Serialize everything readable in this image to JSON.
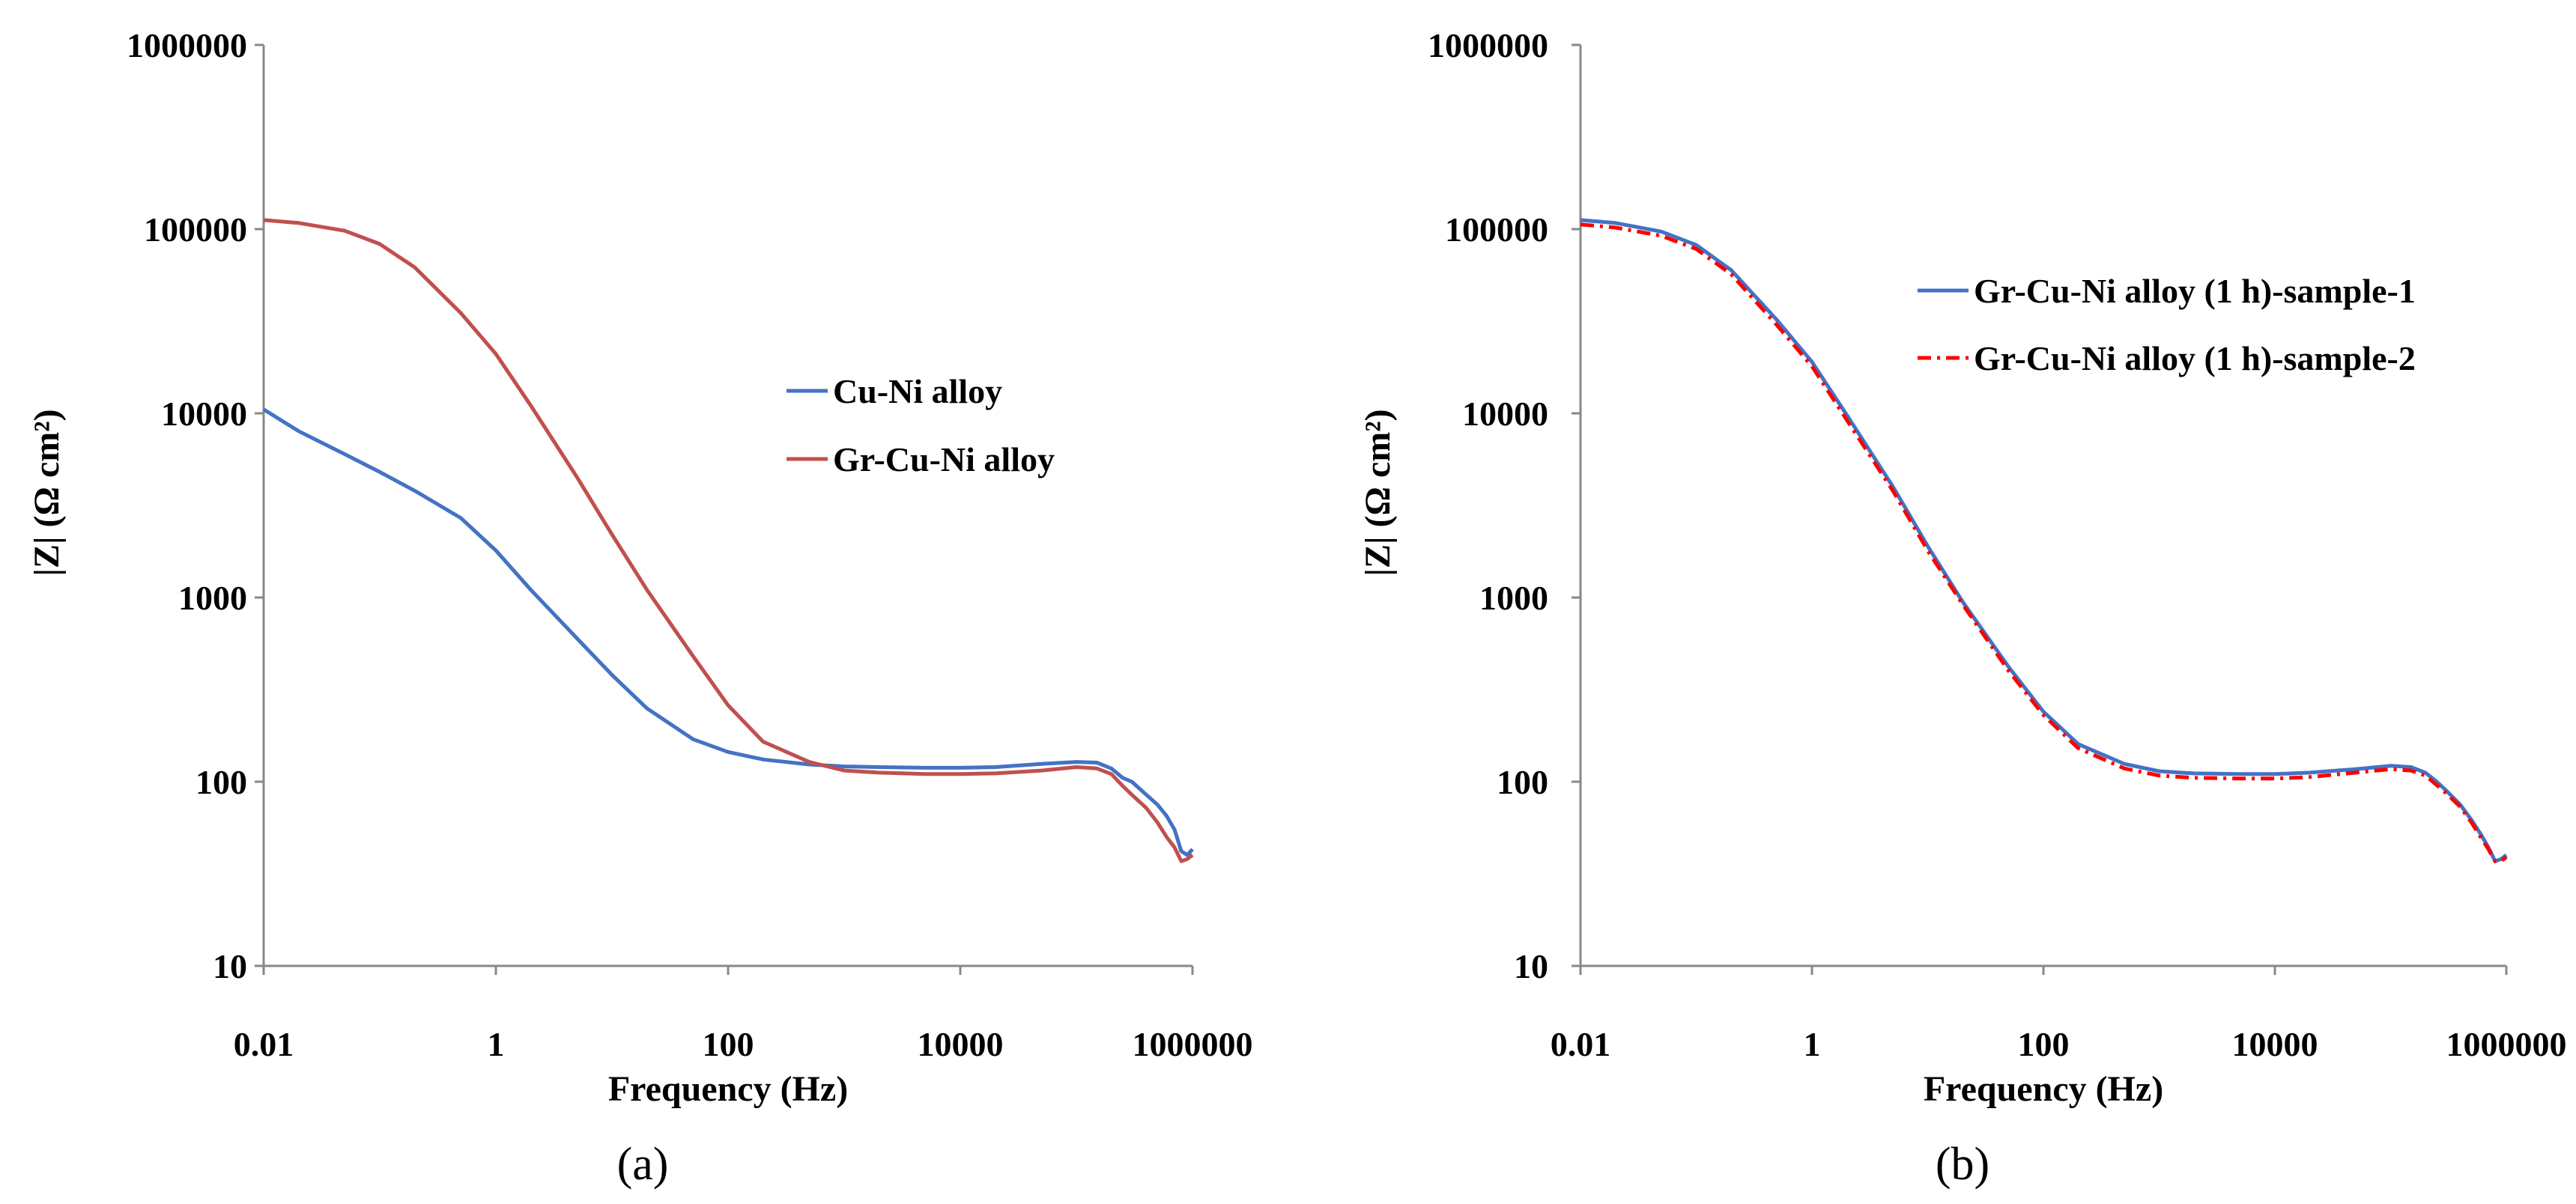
{
  "chart_data": [
    {
      "type": "line",
      "panel_label": "(a)",
      "xscale": "log",
      "yscale": "log",
      "xlim": [
        0.01,
        1000000
      ],
      "ylim": [
        10,
        1000000
      ],
      "xlabel": "Frequency (Hz)",
      "ylabel": "|Z| (Ω cm²)",
      "xticks": [
        "0.01",
        "1",
        "100",
        "10000",
        "1000000"
      ],
      "yticks": [
        "10",
        "100",
        "1000",
        "10000",
        "100000",
        "1000000"
      ],
      "grid": false,
      "legend_position": "center-right",
      "series": [
        {
          "name": "Cu-Ni alloy",
          "color": "#4472C4",
          "dash": "solid",
          "x": [
            0.01,
            0.02,
            0.05,
            0.1,
            0.2,
            0.5,
            1,
            2,
            5,
            10,
            20,
            50,
            100,
            200,
            500,
            1000,
            2000,
            5000,
            10000,
            20000,
            50000,
            100000,
            150000,
            200000,
            250000,
            300000,
            400000,
            500000,
            600000,
            700000,
            800000,
            900000,
            1000000
          ],
          "y": [
            10500,
            8000,
            6000,
            4800,
            3800,
            2700,
            1800,
            1100,
            600,
            380,
            250,
            170,
            145,
            132,
            124,
            121,
            120,
            119,
            119,
            120,
            125,
            128,
            127,
            118,
            105,
            100,
            85,
            75,
            65,
            55,
            42,
            40,
            43
          ]
        },
        {
          "name": "Gr-Cu-Ni alloy",
          "color": "#C0504D",
          "dash": "solid",
          "x": [
            0.01,
            0.02,
            0.05,
            0.1,
            0.2,
            0.5,
            1,
            2,
            5,
            10,
            20,
            50,
            100,
            200,
            500,
            1000,
            2000,
            5000,
            10000,
            20000,
            50000,
            100000,
            150000,
            200000,
            250000,
            300000,
            400000,
            500000,
            600000,
            700000,
            800000,
            900000,
            1000000
          ],
          "y": [
            112000,
            108000,
            98000,
            83000,
            62000,
            35000,
            21000,
            11000,
            4500,
            2200,
            1100,
            480,
            260,
            165,
            128,
            115,
            112,
            110,
            110,
            111,
            115,
            120,
            118,
            110,
            95,
            85,
            72,
            60,
            50,
            44,
            37,
            38,
            40
          ]
        }
      ]
    },
    {
      "type": "line",
      "panel_label": "(b)",
      "xscale": "log",
      "yscale": "log",
      "xlim": [
        0.01,
        1000000
      ],
      "ylim": [
        10,
        1000000
      ],
      "xlabel": "Frequency (Hz)",
      "ylabel": "|Z| (Ω cm²)",
      "xticks": [
        "0.01",
        "1",
        "100",
        "10000",
        "1000000"
      ],
      "yticks": [
        "10",
        "100",
        "1000",
        "10000",
        "100000",
        "1000000"
      ],
      "grid": false,
      "legend_position": "top-right",
      "series": [
        {
          "name": "Gr-Cu-Ni alloy (1 h)-sample-1",
          "color": "#4472C4",
          "dash": "solid",
          "x": [
            0.01,
            0.02,
            0.05,
            0.1,
            0.2,
            0.5,
            1,
            2,
            5,
            10,
            20,
            50,
            100,
            200,
            500,
            1000,
            2000,
            5000,
            10000,
            20000,
            50000,
            100000,
            150000,
            200000,
            250000,
            300000,
            400000,
            500000,
            600000,
            700000,
            800000,
            900000,
            1000000
          ],
          "y": [
            112000,
            108000,
            97000,
            82000,
            60000,
            32000,
            19000,
            9800,
            4000,
            1900,
            950,
            420,
            240,
            160,
            125,
            114,
            111,
            110,
            110,
            112,
            117,
            122,
            120,
            112,
            100,
            90,
            75,
            62,
            52,
            44,
            37,
            38,
            40
          ]
        },
        {
          "name": "Gr-Cu-Ni alloy (1 h)-sample-2",
          "color": "#FF0000",
          "dash": "dashdot",
          "x": [
            0.01,
            0.02,
            0.05,
            0.1,
            0.2,
            0.5,
            1,
            2,
            5,
            10,
            20,
            50,
            100,
            200,
            500,
            1000,
            2000,
            5000,
            10000,
            20000,
            50000,
            100000,
            150000,
            200000,
            250000,
            300000,
            400000,
            500000,
            600000,
            700000,
            800000,
            900000,
            1000000
          ],
          "y": [
            106000,
            102000,
            92000,
            78000,
            57000,
            30000,
            18000,
            9200,
            3800,
            1800,
            920,
            400,
            230,
            152,
            118,
            108,
            105,
            104,
            104,
            106,
            112,
            117,
            115,
            108,
            96,
            87,
            73,
            60,
            50,
            43,
            37,
            37,
            39
          ]
        }
      ]
    }
  ]
}
